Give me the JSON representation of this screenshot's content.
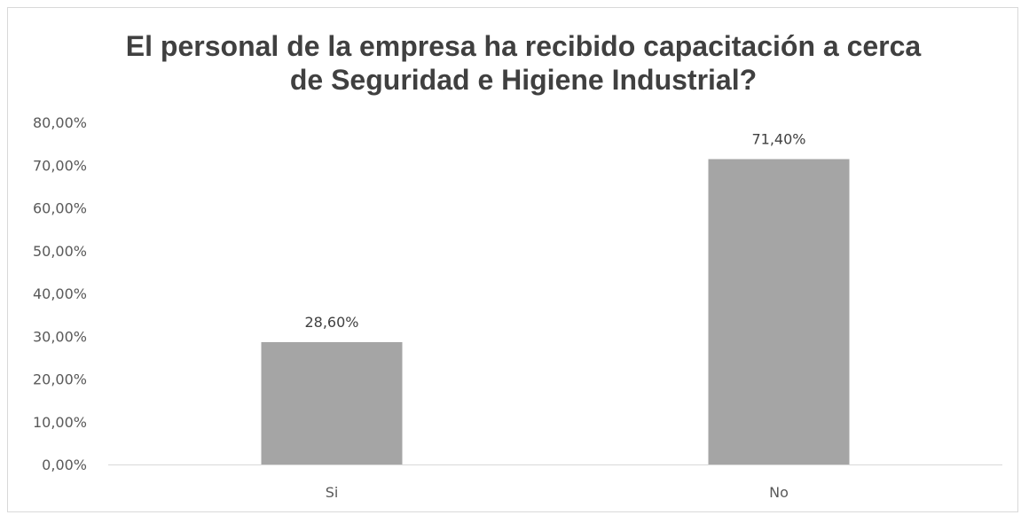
{
  "chart_data": {
    "type": "bar",
    "title_lines": [
      "El personal de la empresa ha recibido capacitación a cerca",
      "de Seguridad e Higiene Industrial?"
    ],
    "categories": [
      "Si",
      "No"
    ],
    "values": [
      28.6,
      71.4
    ],
    "data_labels": [
      "28,60%",
      "71,40%"
    ],
    "ylim": [
      0,
      80
    ],
    "ytick_labels": [
      "0,00%",
      "10,00%",
      "20,00%",
      "30,00%",
      "40,00%",
      "50,00%",
      "60,00%",
      "70,00%",
      "80,00%"
    ],
    "grid": false,
    "legend": "none",
    "bar_color": "#a5a5a5",
    "axis_color": "#d9d9d9"
  }
}
